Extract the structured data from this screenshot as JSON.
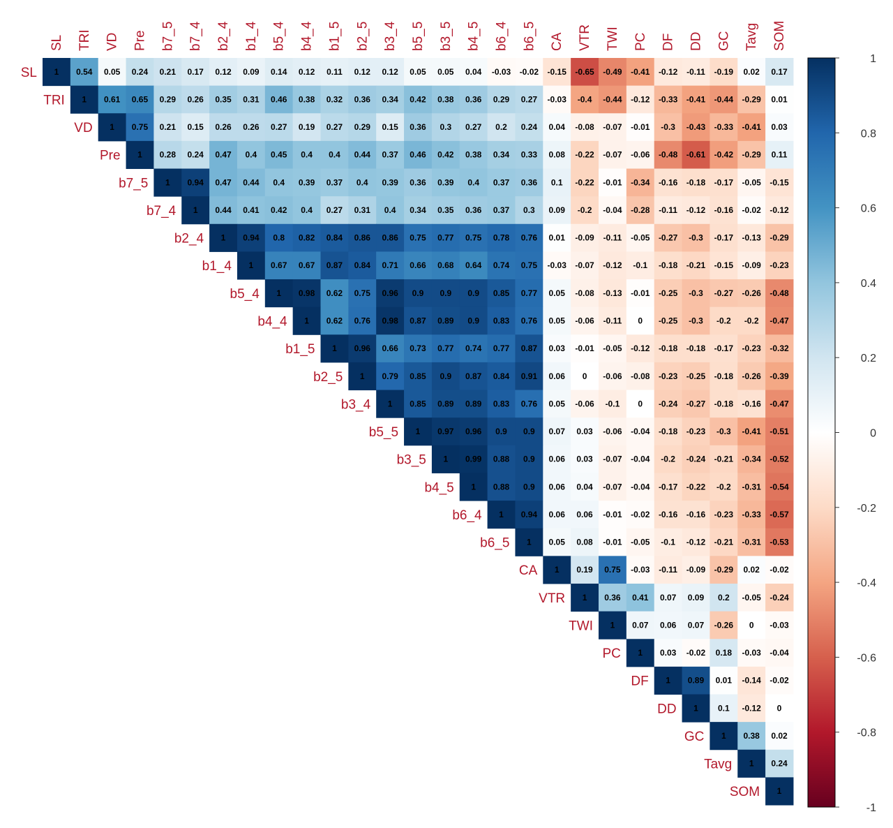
{
  "chart_data": {
    "type": "heatmap",
    "variables": [
      "SL",
      "TRI",
      "VD",
      "Pre",
      "b7_5",
      "b7_4",
      "b2_4",
      "b1_4",
      "b5_4",
      "b4_4",
      "b1_5",
      "b2_5",
      "b3_4",
      "b5_5",
      "b3_5",
      "b4_5",
      "b6_4",
      "b6_5",
      "CA",
      "VTR",
      "TWI",
      "PC",
      "DF",
      "DD",
      "GC",
      "Tavg",
      "SOM"
    ],
    "layout": "upper-triangle",
    "matrix": [
      [
        1,
        0.54,
        0.05,
        0.24,
        0.21,
        0.17,
        0.12,
        0.09,
        0.14,
        0.12,
        0.11,
        0.12,
        0.12,
        0.05,
        0.05,
        0.04,
        -0.03,
        -0.02,
        -0.15,
        -0.65,
        -0.49,
        -0.41,
        -0.12,
        -0.11,
        -0.19,
        0.02,
        0.17
      ],
      [
        1,
        0.61,
        0.65,
        0.29,
        0.26,
        0.35,
        0.31,
        0.46,
        0.38,
        0.32,
        0.36,
        0.34,
        0.42,
        0.38,
        0.36,
        0.29,
        0.27,
        -0.03,
        -0.4,
        -0.44,
        -0.12,
        -0.33,
        -0.41,
        -0.44,
        -0.29,
        0.01
      ],
      [
        1,
        0.75,
        0.21,
        0.15,
        0.26,
        0.26,
        0.27,
        0.19,
        0.27,
        0.29,
        0.15,
        0.36,
        0.3,
        0.27,
        0.2,
        0.24,
        0.04,
        -0.08,
        -0.07,
        -0.01,
        -0.3,
        -0.43,
        -0.33,
        -0.41,
        0.03
      ],
      [
        1,
        0.28,
        0.24,
        0.47,
        0.4,
        0.45,
        0.4,
        0.4,
        0.44,
        0.37,
        0.46,
        0.42,
        0.38,
        0.34,
        0.33,
        0.08,
        -0.22,
        -0.07,
        -0.06,
        -0.48,
        -0.61,
        -0.42,
        -0.29,
        0.11
      ],
      [
        1,
        0.94,
        0.47,
        0.44,
        0.4,
        0.39,
        0.37,
        0.4,
        0.39,
        0.36,
        0.39,
        0.4,
        0.37,
        0.36,
        0.1,
        -0.22,
        -0.01,
        -0.34,
        -0.16,
        -0.18,
        -0.17,
        -0.05,
        -0.15
      ],
      [
        1,
        0.44,
        0.41,
        0.42,
        0.4,
        0.27,
        0.31,
        0.4,
        0.34,
        0.35,
        0.36,
        0.37,
        0.3,
        0.09,
        -0.2,
        -0.04,
        -0.28,
        -0.11,
        -0.12,
        -0.16,
        -0.02,
        -0.12
      ],
      [
        1,
        0.94,
        0.8,
        0.82,
        0.84,
        0.86,
        0.86,
        0.75,
        0.77,
        0.75,
        0.78,
        0.76,
        0.01,
        -0.09,
        -0.11,
        -0.05,
        -0.27,
        -0.3,
        -0.17,
        -0.13,
        -0.29
      ],
      [
        1,
        0.67,
        0.67,
        0.87,
        0.84,
        0.71,
        0.66,
        0.68,
        0.64,
        0.74,
        0.75,
        -0.03,
        -0.07,
        -0.12,
        -0.1,
        -0.18,
        -0.21,
        -0.15,
        -0.09,
        -0.23
      ],
      [
        1,
        0.98,
        0.62,
        0.75,
        0.96,
        0.9,
        0.9,
        0.9,
        0.85,
        0.77,
        0.05,
        -0.08,
        -0.13,
        -0.01,
        -0.25,
        -0.3,
        -0.27,
        -0.26,
        -0.48
      ],
      [
        1,
        0.62,
        0.76,
        0.98,
        0.87,
        0.89,
        0.9,
        0.83,
        0.76,
        0.05,
        -0.06,
        -0.11,
        0,
        -0.25,
        -0.3,
        -0.2,
        -0.2,
        -0.47
      ],
      [
        1,
        0.96,
        0.66,
        0.73,
        0.77,
        0.74,
        0.77,
        0.87,
        0.03,
        -0.01,
        -0.05,
        -0.12,
        -0.18,
        -0.18,
        -0.17,
        -0.23,
        -0.32
      ],
      [
        1,
        0.79,
        0.85,
        0.9,
        0.87,
        0.84,
        0.91,
        0.06,
        0,
        -0.06,
        -0.08,
        -0.23,
        -0.25,
        -0.18,
        -0.26,
        -0.39
      ],
      [
        1,
        0.85,
        0.89,
        0.89,
        0.83,
        0.76,
        0.05,
        -0.06,
        -0.1,
        0,
        -0.24,
        -0.27,
        -0.18,
        -0.16,
        -0.47
      ],
      [
        1,
        0.97,
        0.96,
        0.9,
        0.9,
        0.07,
        0.03,
        -0.06,
        -0.04,
        -0.18,
        -0.23,
        -0.3,
        -0.41,
        -0.51
      ],
      [
        1,
        0.99,
        0.88,
        0.9,
        0.06,
        0.03,
        -0.07,
        -0.04,
        -0.2,
        -0.24,
        -0.21,
        -0.34,
        -0.52
      ],
      [
        1,
        0.88,
        0.9,
        0.06,
        0.04,
        -0.07,
        -0.04,
        -0.17,
        -0.22,
        -0.2,
        -0.31,
        -0.54
      ],
      [
        1,
        0.94,
        0.06,
        0.06,
        -0.01,
        -0.02,
        -0.16,
        -0.16,
        -0.23,
        -0.33,
        -0.57
      ],
      [
        1,
        0.05,
        0.08,
        -0.01,
        -0.05,
        -0.1,
        -0.12,
        -0.21,
        -0.31,
        -0.53
      ],
      [
        1,
        0.19,
        0.75,
        -0.03,
        -0.11,
        -0.09,
        -0.29,
        0.02,
        -0.02
      ],
      [
        1,
        0.36,
        0.41,
        0.07,
        0.09,
        0.2,
        -0.05,
        -0.24
      ],
      [
        1,
        0.07,
        0.06,
        0.07,
        -0.26,
        0,
        -0.03
      ],
      [
        1,
        0.03,
        -0.02,
        0.18,
        -0.03,
        -0.04
      ],
      [
        1,
        0.89,
        0.01,
        -0.14,
        -0.02
      ],
      [
        1,
        0.1,
        -0.12,
        0
      ],
      [
        1,
        0.38,
        0.02
      ],
      [
        1,
        0.24
      ],
      [
        1
      ]
    ],
    "color_scale": {
      "min": -1,
      "max": 1,
      "ticks": [
        "1",
        "0.8",
        "0.6",
        "0.4",
        "0.2",
        "0",
        "-0.2",
        "-0.4",
        "-0.6",
        "-0.8",
        "-1"
      ],
      "colors": [
        "#67001f",
        "#b2182b",
        "#d6604d",
        "#f4a582",
        "#fddbc7",
        "#ffffff",
        "#d1e5f0",
        "#92c5de",
        "#4393c3",
        "#2166ac",
        "#053061"
      ]
    },
    "label_color": "#b2182b"
  }
}
